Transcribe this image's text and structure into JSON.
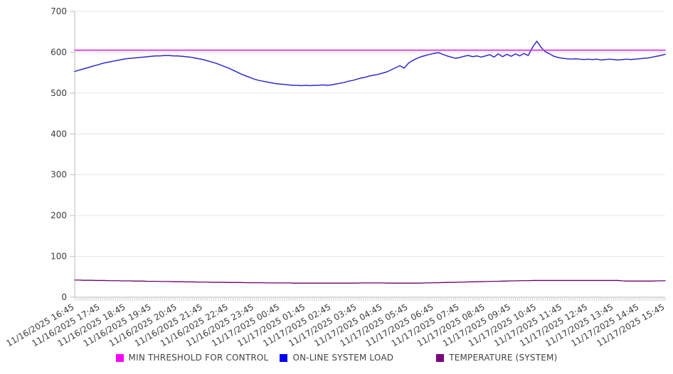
{
  "chart_data": {
    "type": "line",
    "title": "",
    "grid": "horizontal",
    "legend_position": "bottom",
    "x_axis": {
      "tick_labels": [
        "11/16/2025 16:45",
        "11/16/2025 17:45",
        "11/16/2025 18:45",
        "11/16/2025 19:45",
        "11/16/2025 20:45",
        "11/16/2025 21:45",
        "11/16/2025 22:45",
        "11/16/2025 23:45",
        "11/17/2025 00:45",
        "11/17/2025 01:45",
        "11/17/2025 02:45",
        "11/17/2025 03:45",
        "11/17/2025 04:45",
        "11/17/2025 05:45",
        "11/17/2025 06:45",
        "11/17/2025 07:45",
        "11/17/2025 08:45",
        "11/17/2025 09:45",
        "11/17/2025 10:45",
        "11/17/2025 11:45",
        "11/17/2025 12:45",
        "11/17/2025 13:45",
        "11/17/2025 14:45",
        "11/17/2025 15:45"
      ],
      "point_interval_minutes": 10,
      "minor_tick_interval_minutes": 5
    },
    "y_axis": {
      "min": 0,
      "max": 700,
      "ticks": [
        0,
        100,
        200,
        300,
        400,
        500,
        600,
        700
      ]
    },
    "series": [
      {
        "name": "MIN THRESHOLD FOR CONTROL",
        "color": "#e020e0",
        "swatch_color": "#fa00fa",
        "style": "constant",
        "value": 605
      },
      {
        "name": "ON-LINE SYSTEM LOAD",
        "color": "#2b2bcd",
        "swatch_color": "#0000f0",
        "values": [
          553,
          556,
          559,
          562,
          565,
          568,
          571,
          574,
          576,
          578,
          580,
          582,
          584,
          585,
          586,
          587,
          588,
          589,
          590,
          591,
          591,
          592,
          592,
          591,
          591,
          590,
          589,
          588,
          586,
          584,
          582,
          579,
          576,
          573,
          569,
          565,
          561,
          556,
          551,
          546,
          542,
          538,
          534,
          531,
          529,
          527,
          525,
          523,
          522,
          521,
          520,
          519,
          519,
          518,
          519,
          518,
          519,
          519,
          520,
          519,
          520,
          522,
          524,
          526,
          529,
          531,
          534,
          537,
          539,
          542,
          544,
          546,
          549,
          552,
          557,
          562,
          567,
          561,
          573,
          580,
          585,
          589,
          592,
          595,
          597,
          599,
          595,
          591,
          588,
          585,
          587,
          590,
          592,
          589,
          591,
          588,
          591,
          594,
          588,
          596,
          589,
          595,
          590,
          596,
          591,
          597,
          592,
          612,
          627,
          612,
          601,
          596,
          590,
          587,
          585,
          584,
          583,
          584,
          583,
          582,
          583,
          582,
          583,
          581,
          582,
          583,
          582,
          581,
          582,
          583,
          582,
          583,
          584,
          585,
          586,
          588,
          590,
          592,
          595
        ]
      },
      {
        "name": "TEMPERATURE (SYSTEM)",
        "color": "#6b006b",
        "swatch_color": "#7d007d",
        "values": [
          42,
          42,
          41.5,
          41.5,
          41.5,
          41,
          41,
          41,
          40.5,
          40.5,
          40.5,
          40,
          40,
          40,
          39.5,
          39.5,
          39.5,
          39,
          39,
          39,
          38.5,
          38.5,
          38.5,
          38,
          38,
          38,
          37.5,
          37.5,
          37.5,
          37,
          37,
          37,
          36.5,
          36.5,
          36.5,
          36.5,
          36,
          36,
          36,
          36,
          35.5,
          35.5,
          35.5,
          35.5,
          35.5,
          35,
          35,
          35,
          35,
          35,
          35,
          34.5,
          34.5,
          34.5,
          34.5,
          34.5,
          34.5,
          34.5,
          34.5,
          34.5,
          34.5,
          34.5,
          34.5,
          34.5,
          34.5,
          34.5,
          34.5,
          35,
          35,
          35,
          35,
          35,
          35,
          34.5,
          34.5,
          34.5,
          34.5,
          34.5,
          34.5,
          34.5,
          34.5,
          34.5,
          35,
          35,
          35.5,
          35.5,
          36,
          36,
          36.5,
          36.5,
          37,
          37,
          37.5,
          37.5,
          38,
          38,
          38.5,
          38.5,
          39,
          39,
          39.5,
          39.5,
          40,
          40,
          40.5,
          40.5,
          40.5,
          41,
          41,
          41,
          41,
          41,
          41,
          41,
          41,
          41,
          41,
          41,
          41,
          41,
          41,
          41,
          41,
          41,
          41,
          41,
          41,
          41,
          40,
          39.5,
          39.5,
          39.5,
          39.5,
          39.5,
          39.5,
          39.5,
          40,
          40,
          40.5
        ]
      }
    ]
  }
}
